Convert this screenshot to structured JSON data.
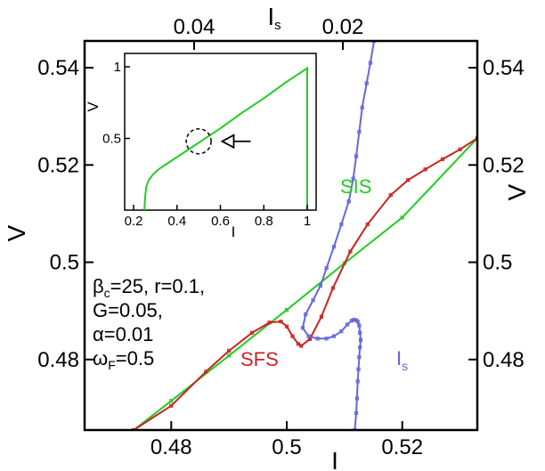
{
  "colors": {
    "sis": "#22cc22",
    "sfs": "#cc2222",
    "is": "#6666dd",
    "axis": "#000000",
    "background": "#ffffff"
  },
  "chart_data": [
    {
      "type": "line",
      "xlabel": "I",
      "ylabel": "V",
      "xlim": [
        0.465,
        0.533
      ],
      "ylim": [
        0.4655,
        0.5455
      ],
      "x_ticks": [
        0.48,
        0.5,
        0.52
      ],
      "x_tick_labels": [
        "0.48",
        "0.5",
        "0.52"
      ],
      "y_ticks": [
        0.48,
        0.5,
        0.52,
        0.54
      ],
      "y_tick_labels": [
        "0.48",
        "0.5",
        "0.52",
        "0.54"
      ],
      "right_ylabel": "V",
      "top_axis": {
        "label": "I",
        "label_sub": "s",
        "ticks": [
          0.04,
          0.02
        ],
        "tick_labels": [
          "0.04",
          "0.02"
        ],
        "note": "reversed scale"
      },
      "grid": false,
      "series": [
        {
          "name": "SIS",
          "axis": "bottom",
          "x": [
            0.4735,
            0.48,
            0.49,
            0.5,
            0.51,
            0.52,
            0.533
          ],
          "y": [
            0.4655,
            0.4715,
            0.4808,
            0.4902,
            0.4998,
            0.5092,
            0.5255
          ]
        },
        {
          "name": "SFS",
          "axis": "bottom",
          "x": [
            0.4735,
            0.48,
            0.486,
            0.49,
            0.494,
            0.497,
            0.499,
            0.5,
            0.501,
            0.502,
            0.5025,
            0.504,
            0.506,
            0.508,
            0.511,
            0.514,
            0.518,
            0.521,
            0.524,
            0.527,
            0.53,
            0.533
          ],
          "y": [
            0.4655,
            0.4705,
            0.4775,
            0.4818,
            0.4855,
            0.4876,
            0.4878,
            0.4868,
            0.4848,
            0.4832,
            0.4828,
            0.4842,
            0.4888,
            0.4947,
            0.5022,
            0.5078,
            0.5138,
            0.5169,
            0.5191,
            0.5212,
            0.5232,
            0.5255
          ]
        },
        {
          "name": "I",
          "name_sub": "s",
          "axis": "top",
          "x": [
            0.0184,
            0.0182,
            0.0181,
            0.018,
            0.0179,
            0.0178,
            0.0177,
            0.0176,
            0.0177,
            0.0178,
            0.018,
            0.0182,
            0.0185,
            0.0188,
            0.0194,
            0.0202,
            0.0212,
            0.0222,
            0.0234,
            0.0246,
            0.0254,
            0.025,
            0.024,
            0.023,
            0.0222,
            0.0212,
            0.0202,
            0.0192,
            0.0186,
            0.0182,
            0.0178,
            0.0174,
            0.0168,
            0.0163,
            0.0158
          ],
          "y": [
            0.4655,
            0.469,
            0.472,
            0.4755,
            0.478,
            0.4805,
            0.4825,
            0.484,
            0.4855,
            0.487,
            0.4878,
            0.4881,
            0.4882,
            0.488,
            0.4872,
            0.4858,
            0.4848,
            0.4843,
            0.4843,
            0.4848,
            0.4865,
            0.4893,
            0.4922,
            0.4952,
            0.4988,
            0.5032,
            0.5078,
            0.5125,
            0.5172,
            0.5218,
            0.5268,
            0.5318,
            0.5368,
            0.541,
            0.5455
          ]
        }
      ],
      "annotations": [
        {
          "text": "SIS",
          "color": "#22cc22"
        },
        {
          "text": "SFS",
          "color": "#cc2222"
        },
        {
          "text": "I",
          "sub": "s",
          "color": "#6666dd"
        }
      ],
      "parameters": [
        {
          "main": "β",
          "sub": "c",
          "rest": "=25, r=0.1,"
        },
        {
          "main": "G=0.05,",
          "sub": "",
          "rest": ""
        },
        {
          "main": "α=0.01",
          "sub": "",
          "rest": ""
        },
        {
          "main": "ω",
          "sub": "F",
          "rest": "=0.5"
        }
      ]
    },
    {
      "type": "line",
      "role": "inset",
      "xlabel": "I",
      "ylabel": "V",
      "xlim": [
        0.2,
        1.02
      ],
      "ylim": [
        0.0,
        1.05
      ],
      "x_ticks": [
        0.2,
        0.4,
        0.6,
        0.8,
        1.0
      ],
      "x_tick_labels": [
        "0.2",
        "0.4",
        "0.6",
        "0.8",
        "1"
      ],
      "y_ticks": [
        0.5,
        1.0
      ],
      "y_tick_labels": [
        "0.5",
        "1"
      ],
      "grid": false,
      "series": [
        {
          "name": "",
          "x": [
            0.25,
            0.252,
            0.255,
            0.26,
            0.27,
            0.29,
            0.32,
            0.36,
            0.4,
            0.45,
            0.5,
            0.6,
            0.7,
            0.8,
            0.9,
            1.0,
            1.0
          ],
          "y": [
            0.0,
            0.06,
            0.12,
            0.17,
            0.21,
            0.25,
            0.29,
            0.33,
            0.37,
            0.42,
            0.47,
            0.57,
            0.68,
            0.78,
            0.89,
            0.99,
            0.0
          ]
        }
      ],
      "marker": {
        "type": "dashed-circle",
        "x": 0.5,
        "y": 0.48
      },
      "arrow": {
        "direction": "left",
        "x": 0.6,
        "y": 0.48
      }
    }
  ]
}
